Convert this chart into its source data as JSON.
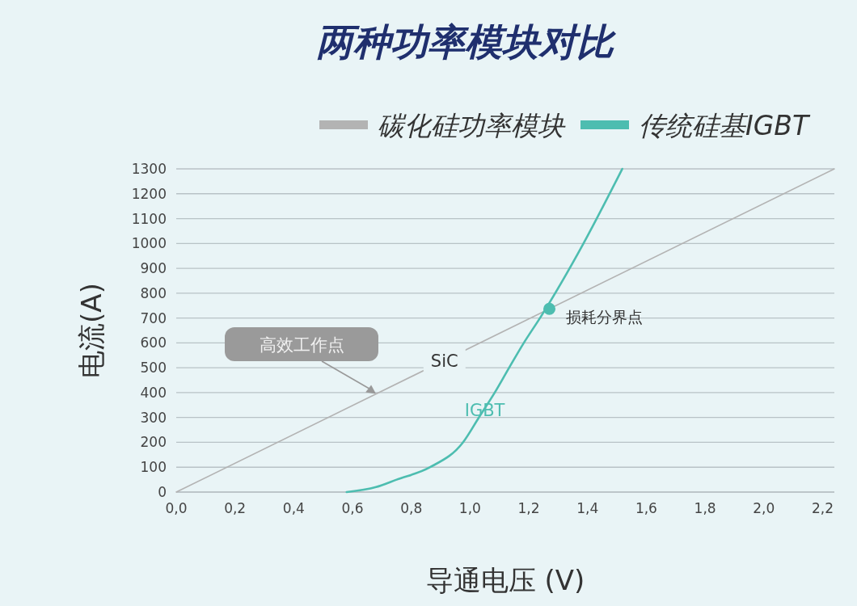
{
  "chart_data": {
    "type": "line",
    "title": "两种功率模块对比",
    "xlabel": "导通电压 (V)",
    "ylabel": "电流(A)",
    "xlim": [
      0,
      2.24
    ],
    "ylim": [
      0,
      1300
    ],
    "xticks": [
      {
        "value": 0,
        "label": "0,0"
      },
      {
        "value": 0.2,
        "label": "0,2"
      },
      {
        "value": 0.4,
        "label": "0,4"
      },
      {
        "value": 0.6,
        "label": "0,6"
      },
      {
        "value": 0.8,
        "label": "0,8"
      },
      {
        "value": 1.0,
        "label": "1,0"
      },
      {
        "value": 1.2,
        "label": "1,2"
      },
      {
        "value": 1.4,
        "label": "1,4"
      },
      {
        "value": 1.6,
        "label": "1,6"
      },
      {
        "value": 1.8,
        "label": "1,8"
      },
      {
        "value": 2.0,
        "label": "2,0"
      },
      {
        "value": 2.2,
        "label": "2,2"
      }
    ],
    "yticks": [
      0,
      100,
      200,
      300,
      400,
      500,
      600,
      700,
      800,
      900,
      1000,
      1100,
      1200,
      1300
    ],
    "grid": "y",
    "legend": "top right",
    "marker": "none",
    "series": [
      {
        "name": "碳化硅功率模块",
        "color": "#b3b3b3",
        "x": [
          0,
          2.24
        ],
        "values": [
          0,
          1300
        ]
      },
      {
        "name": "传统硅基IGBT",
        "color": "#4dbdb0",
        "x": [
          0.58,
          0.68,
          0.75,
          0.864,
          0.976,
          1.03,
          1.084,
          1.133,
          1.183,
          1.238,
          1.386,
          1.518
        ],
        "values": [
          0,
          20,
          50,
          100,
          200,
          300,
          400,
          500,
          600,
          700,
          1000,
          1300
        ]
      },
      {
        "type": "scatter",
        "color": "#4dbdb0",
        "marker": "circle",
        "x": [
          1.27
        ],
        "values": [
          737
        ]
      }
    ],
    "annotations": [
      {
        "text": "高效工作点",
        "x": 0.68,
        "y": 395
      },
      {
        "text": "损耗分界点",
        "x": 1.27,
        "y": 737
      },
      {
        "text": "SiC",
        "x": 0.913,
        "y": 530
      },
      {
        "text": "IGBT",
        "x": 1.05,
        "y": 330
      }
    ]
  }
}
